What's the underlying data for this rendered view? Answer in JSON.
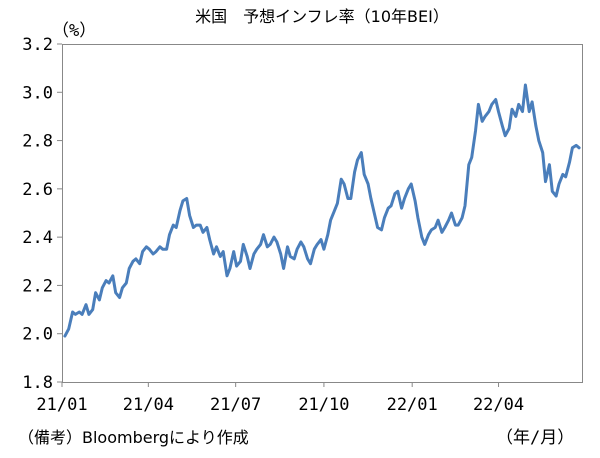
{
  "chart_data": {
    "type": "line",
    "title": "米国　予想インフレ率（10年BEI）",
    "y_unit_label": "（%）",
    "x_unit_label": "（年/月）",
    "source_note": "（備考）Bloombergにより作成",
    "ylim": [
      1.8,
      3.2
    ],
    "y_ticks": [
      "1.8",
      "2.0",
      "2.2",
      "2.4",
      "2.6",
      "2.8",
      "3.0",
      "3.2"
    ],
    "x_ticks": [
      "21/01",
      "21/04",
      "21/07",
      "21/10",
      "22/01",
      "22/04"
    ],
    "grid": false,
    "series": [
      {
        "color": "#4a7ebb",
        "x": [
          "2021-01-04",
          "2021-01-08",
          "2021-01-12",
          "2021-01-15",
          "2021-01-19",
          "2021-01-22",
          "2021-01-26",
          "2021-01-29",
          "2021-02-02",
          "2021-02-05",
          "2021-02-09",
          "2021-02-12",
          "2021-02-16",
          "2021-02-19",
          "2021-02-23",
          "2021-02-26",
          "2021-03-02",
          "2021-03-05",
          "2021-03-09",
          "2021-03-12",
          "2021-03-16",
          "2021-03-19",
          "2021-03-23",
          "2021-03-26",
          "2021-03-30",
          "2021-04-02",
          "2021-04-06",
          "2021-04-09",
          "2021-04-13",
          "2021-04-16",
          "2021-04-20",
          "2021-04-23",
          "2021-04-27",
          "2021-04-30",
          "2021-05-04",
          "2021-05-07",
          "2021-05-11",
          "2021-05-14",
          "2021-05-18",
          "2021-05-21",
          "2021-05-25",
          "2021-05-28",
          "2021-06-01",
          "2021-06-04",
          "2021-06-08",
          "2021-06-11",
          "2021-06-15",
          "2021-06-18",
          "2021-06-22",
          "2021-06-25",
          "2021-06-29",
          "2021-07-02",
          "2021-07-06",
          "2021-07-09",
          "2021-07-13",
          "2021-07-16",
          "2021-07-20",
          "2021-07-23",
          "2021-07-27",
          "2021-07-30",
          "2021-08-03",
          "2021-08-06",
          "2021-08-10",
          "2021-08-13",
          "2021-08-17",
          "2021-08-20",
          "2021-08-24",
          "2021-08-27",
          "2021-08-31",
          "2021-09-03",
          "2021-09-07",
          "2021-09-10",
          "2021-09-14",
          "2021-09-17",
          "2021-09-21",
          "2021-09-24",
          "2021-09-28",
          "2021-10-01",
          "2021-10-05",
          "2021-10-08",
          "2021-10-12",
          "2021-10-15",
          "2021-10-19",
          "2021-10-22",
          "2021-10-26",
          "2021-10-29",
          "2021-11-02",
          "2021-11-05",
          "2021-11-09",
          "2021-11-12",
          "2021-11-16",
          "2021-11-19",
          "2021-11-23",
          "2021-11-26",
          "2021-11-30",
          "2021-12-03",
          "2021-12-07",
          "2021-12-10",
          "2021-12-14",
          "2021-12-17",
          "2021-12-21",
          "2021-12-24",
          "2021-12-28",
          "2021-12-31",
          "2022-01-04",
          "2022-01-07",
          "2022-01-11",
          "2022-01-14",
          "2022-01-18",
          "2022-01-21",
          "2022-01-25",
          "2022-01-28",
          "2022-02-01",
          "2022-02-04",
          "2022-02-08",
          "2022-02-11",
          "2022-02-15",
          "2022-02-18",
          "2022-02-22",
          "2022-02-25",
          "2022-03-01",
          "2022-03-04",
          "2022-03-08",
          "2022-03-11",
          "2022-03-15",
          "2022-03-18",
          "2022-03-22",
          "2022-03-25",
          "2022-03-29",
          "2022-04-01",
          "2022-04-05",
          "2022-04-08",
          "2022-04-12",
          "2022-04-15",
          "2022-04-19",
          "2022-04-22",
          "2022-04-26",
          "2022-04-29",
          "2022-05-03",
          "2022-05-06",
          "2022-05-10",
          "2022-05-13",
          "2022-05-17",
          "2022-05-20",
          "2022-05-24",
          "2022-05-27",
          "2022-05-31",
          "2022-06-03",
          "2022-06-07",
          "2022-06-10",
          "2022-06-14",
          "2022-06-17",
          "2022-06-21",
          "2022-06-24"
        ],
        "values": [
          1.99,
          2.02,
          2.09,
          2.08,
          2.09,
          2.08,
          2.12,
          2.08,
          2.1,
          2.17,
          2.14,
          2.19,
          2.22,
          2.21,
          2.24,
          2.17,
          2.15,
          2.19,
          2.21,
          2.27,
          2.3,
          2.31,
          2.29,
          2.34,
          2.36,
          2.35,
          2.33,
          2.34,
          2.36,
          2.35,
          2.35,
          2.41,
          2.45,
          2.44,
          2.51,
          2.55,
          2.56,
          2.49,
          2.44,
          2.45,
          2.45,
          2.42,
          2.44,
          2.39,
          2.33,
          2.36,
          2.32,
          2.34,
          2.24,
          2.27,
          2.34,
          2.28,
          2.3,
          2.37,
          2.32,
          2.27,
          2.33,
          2.35,
          2.37,
          2.41,
          2.36,
          2.37,
          2.4,
          2.38,
          2.33,
          2.27,
          2.36,
          2.32,
          2.31,
          2.35,
          2.38,
          2.36,
          2.31,
          2.29,
          2.35,
          2.37,
          2.39,
          2.35,
          2.41,
          2.47,
          2.51,
          2.54,
          2.64,
          2.62,
          2.56,
          2.56,
          2.67,
          2.72,
          2.75,
          2.66,
          2.62,
          2.56,
          2.49,
          2.44,
          2.43,
          2.48,
          2.52,
          2.53,
          2.58,
          2.59,
          2.52,
          2.56,
          2.6,
          2.62,
          2.55,
          2.48,
          2.4,
          2.37,
          2.41,
          2.43,
          2.44,
          2.47,
          2.42,
          2.44,
          2.47,
          2.5,
          2.45,
          2.45,
          2.48,
          2.53,
          2.7,
          2.73,
          2.84,
          2.95,
          2.88,
          2.9,
          2.92,
          2.95,
          2.97,
          2.92,
          2.86,
          2.82,
          2.85,
          2.93,
          2.9,
          2.95,
          2.92,
          3.03,
          2.92,
          2.96,
          2.86,
          2.8,
          2.75,
          2.63,
          2.7,
          2.59,
          2.57,
          2.62,
          2.66,
          2.65,
          2.71,
          2.77,
          2.78,
          2.77
        ]
      }
    ]
  }
}
